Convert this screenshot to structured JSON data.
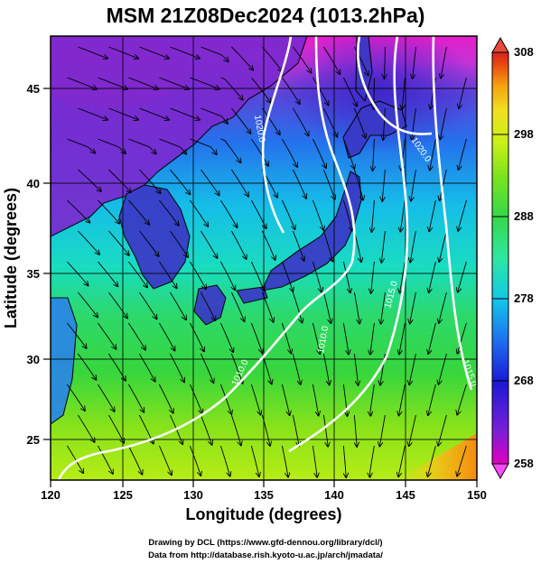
{
  "title": "MSM 21Z08Dec2024 (1013.2hPa)",
  "xaxis": {
    "label": "Longitude (degrees)",
    "range": [
      120,
      150
    ],
    "ticks": [
      "120",
      "125",
      "130",
      "135",
      "140",
      "145",
      "150"
    ]
  },
  "yaxis": {
    "label": "Latitude  (degrees)",
    "range": [
      22.4,
      47.6
    ],
    "ticks": [
      "25",
      "30",
      "35",
      "40",
      "45"
    ]
  },
  "colorbar": {
    "ticks": [
      "258",
      "268",
      "278",
      "288",
      "298",
      "308"
    ],
    "range": [
      258,
      308
    ],
    "colors": [
      "#e000c0",
      "#7a1fd6",
      "#1a1ad6",
      "#1e6ff0",
      "#12c8e8",
      "#2ee8a0",
      "#35d84a",
      "#7ce41c",
      "#c8f018",
      "#f0e020",
      "#f5a010",
      "#e84a10",
      "#d82020"
    ]
  },
  "isobars": [
    "1020.0",
    "1020.0",
    "1015.0",
    "1010.0",
    "1010.0",
    "1015.0"
  ],
  "credits": {
    "line1": "Drawing by DCL (https://www.gfd-dennou.org/library/dcl/)",
    "line2": "Data from http://database.rish.kyoto-u.ac.jp/arch/jmadata/"
  }
}
